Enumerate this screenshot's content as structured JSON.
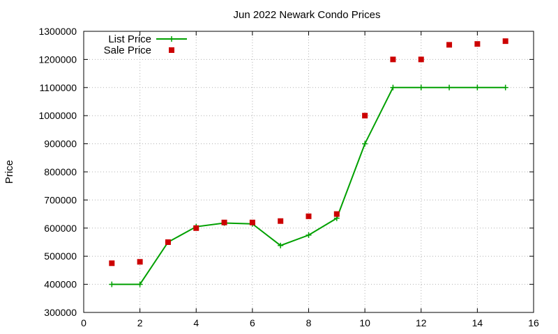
{
  "chart_data": {
    "type": "line",
    "title": "Jun 2022 Newark Condo Prices",
    "xlabel": "",
    "ylabel": "Price",
    "xlim": [
      0,
      16
    ],
    "ylim": [
      300000,
      1300000
    ],
    "x_ticks": [
      "0",
      "2",
      "4",
      "6",
      "8",
      "10",
      "12",
      "14",
      "16"
    ],
    "y_ticks": [
      "300000",
      "400000",
      "500000",
      "600000",
      "700000",
      "800000",
      "900000",
      "1000000",
      "1100000",
      "1200000",
      "1300000"
    ],
    "grid": true,
    "legend_position": "top-left",
    "series": [
      {
        "name": "List Price",
        "style": "line-with-plus-markers",
        "color": "#00a000",
        "x": [
          1,
          2,
          3,
          4,
          5,
          6,
          7,
          8,
          9,
          10,
          11,
          12,
          13,
          14,
          15
        ],
        "values": [
          400000,
          400000,
          550000,
          605000,
          618000,
          615000,
          538000,
          575000,
          635000,
          900000,
          1100000,
          1100000,
          1100000,
          1100000,
          1100000
        ]
      },
      {
        "name": "Sale Price",
        "style": "square-markers",
        "color": "#cc0000",
        "x": [
          1,
          2,
          3,
          4,
          5,
          6,
          7,
          8,
          9,
          10,
          11,
          12,
          13,
          14,
          15
        ],
        "values": [
          475000,
          480000,
          550000,
          600000,
          620000,
          620000,
          625000,
          642000,
          650000,
          1000000,
          1200000,
          1200000,
          1252000,
          1255000,
          1265000
        ]
      }
    ]
  }
}
